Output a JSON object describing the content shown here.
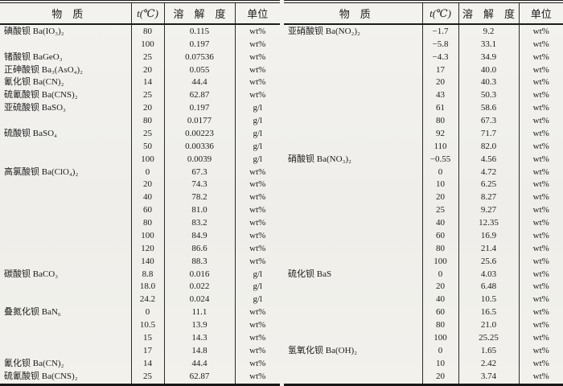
{
  "page": {
    "background_color": "#f2f1ed",
    "line_color": "#191919",
    "text_color": "#1c1c1c"
  },
  "tables": [
    {
      "name": "barium-solubility-left",
      "headers": {
        "substance": "物　质",
        "temperature": "t(℃)",
        "solubility": "溶　解　度",
        "unit": "单位"
      },
      "rows": [
        {
          "substance": "碘酸钡 Ba(IO₃)₂",
          "t": "80",
          "solubility": "0.115",
          "unit": "wt%"
        },
        {
          "substance": "",
          "t": "100",
          "solubility": "0.197",
          "unit": "wt%"
        },
        {
          "substance": "锗酸钡 BaGeO₃",
          "t": "25",
          "solubility": "0.07536",
          "unit": "wt%"
        },
        {
          "substance": "正砷酸钡 Ba₃(AsO₄)₂",
          "t": "20",
          "solubility": "0.055",
          "unit": "wt%"
        },
        {
          "substance": "氰化钡 Ba(CN)₂",
          "t": "14",
          "solubility": "44.4",
          "unit": "wt%"
        },
        {
          "substance": "硫氰酸钡 Ba(CNS)₂",
          "t": "25",
          "solubility": "62.87",
          "unit": "wt%"
        },
        {
          "substance": "亚硫酸钡 BaSO₃",
          "t": "20",
          "solubility": "0.197",
          "unit": "g/l"
        },
        {
          "substance": "",
          "t": "80",
          "solubility": "0.0177",
          "unit": "g/l"
        },
        {
          "substance": "硫酸钡 BaSO₄",
          "t": "25",
          "solubility": "0.00223",
          "unit": "g/l"
        },
        {
          "substance": "",
          "t": "50",
          "solubility": "0.00336",
          "unit": "g/l"
        },
        {
          "substance": "",
          "t": "100",
          "solubility": "0.0039",
          "unit": "g/l"
        },
        {
          "substance": "高氯酸钡 Ba(ClO₄)₂",
          "t": "0",
          "solubility": "67.3",
          "unit": "wt%"
        },
        {
          "substance": "",
          "t": "20",
          "solubility": "74.3",
          "unit": "wt%"
        },
        {
          "substance": "",
          "t": "40",
          "solubility": "78.2",
          "unit": "wt%"
        },
        {
          "substance": "",
          "t": "60",
          "solubility": "81.0",
          "unit": "wt%"
        },
        {
          "substance": "",
          "t": "80",
          "solubility": "83.2",
          "unit": "wt%"
        },
        {
          "substance": "",
          "t": "100",
          "solubility": "84.9",
          "unit": "wt%"
        },
        {
          "substance": "",
          "t": "120",
          "solubility": "86.6",
          "unit": "wt%"
        },
        {
          "substance": "",
          "t": "140",
          "solubility": "88.3",
          "unit": "wt%"
        },
        {
          "substance": "碳酸钡 BaCO₃",
          "t": "8.8",
          "solubility": "0.016",
          "unit": "g/l"
        },
        {
          "substance": "",
          "t": "18.0",
          "solubility": "0.022",
          "unit": "g/l"
        },
        {
          "substance": "",
          "t": "24.2",
          "solubility": "0.024",
          "unit": "g/l"
        },
        {
          "substance": "叠氮化钡 BaN₆",
          "t": "0",
          "solubility": "11.1",
          "unit": "wt%"
        },
        {
          "substance": "",
          "t": "10.5",
          "solubility": "13.9",
          "unit": "wt%"
        },
        {
          "substance": "",
          "t": "15",
          "solubility": "14.3",
          "unit": "wt%"
        },
        {
          "substance": "",
          "t": "17",
          "solubility": "14.8",
          "unit": "wt%"
        },
        {
          "substance": "氰化钡 Ba(CN)₂",
          "t": "14",
          "solubility": "44.4",
          "unit": "wt%"
        },
        {
          "substance": "硫氰酸钡 Ba(CNS)₂",
          "t": "25",
          "solubility": "62.87",
          "unit": "wt%"
        }
      ]
    },
    {
      "name": "barium-solubility-right",
      "headers": {
        "substance": "物　质",
        "temperature": "t(℃)",
        "solubility": "溶　解　度",
        "unit": "单位"
      },
      "rows": [
        {
          "substance": "亚硝酸钡 Ba(NO₂)₂",
          "t": "−1.7",
          "solubility": "9.2",
          "unit": "wt%"
        },
        {
          "substance": "",
          "t": "−5.8",
          "solubility": "33.1",
          "unit": "wt%"
        },
        {
          "substance": "",
          "t": "−4.3",
          "solubility": "34.9",
          "unit": "wt%"
        },
        {
          "substance": "",
          "t": "17",
          "solubility": "40.0",
          "unit": "wt%"
        },
        {
          "substance": "",
          "t": "20",
          "solubility": "40.3",
          "unit": "wt%"
        },
        {
          "substance": "",
          "t": "43",
          "solubility": "50.3",
          "unit": "wt%"
        },
        {
          "substance": "",
          "t": "61",
          "solubility": "58.6",
          "unit": "wt%"
        },
        {
          "substance": "",
          "t": "80",
          "solubility": "67.3",
          "unit": "wt%"
        },
        {
          "substance": "",
          "t": "92",
          "solubility": "71.7",
          "unit": "wt%"
        },
        {
          "substance": "",
          "t": "110",
          "solubility": "82.0",
          "unit": "wt%"
        },
        {
          "substance": "硝酸钡 Ba(NO₃)₂",
          "t": "−0.55",
          "solubility": "4.56",
          "unit": "wt%"
        },
        {
          "substance": "",
          "t": "0",
          "solubility": "4.72",
          "unit": "wt%"
        },
        {
          "substance": "",
          "t": "10",
          "solubility": "6.25",
          "unit": "wt%"
        },
        {
          "substance": "",
          "t": "20",
          "solubility": "8.27",
          "unit": "wt%"
        },
        {
          "substance": "",
          "t": "25",
          "solubility": "9.27",
          "unit": "wt%"
        },
        {
          "substance": "",
          "t": "40",
          "solubility": "12.35",
          "unit": "wt%"
        },
        {
          "substance": "",
          "t": "60",
          "solubility": "16.9",
          "unit": "wt%"
        },
        {
          "substance": "",
          "t": "80",
          "solubility": "21.4",
          "unit": "wt%"
        },
        {
          "substance": "",
          "t": "100",
          "solubility": "25.6",
          "unit": "wt%"
        },
        {
          "substance": "硫化钡 BaS",
          "t": "0",
          "solubility": "4.03",
          "unit": "wt%"
        },
        {
          "substance": "",
          "t": "20",
          "solubility": "6.48",
          "unit": "wt%"
        },
        {
          "substance": "",
          "t": "40",
          "solubility": "10.5",
          "unit": "wt%"
        },
        {
          "substance": "",
          "t": "60",
          "solubility": "16.5",
          "unit": "wt%"
        },
        {
          "substance": "",
          "t": "80",
          "solubility": "21.0",
          "unit": "wt%"
        },
        {
          "substance": "",
          "t": "100",
          "solubility": "25.25",
          "unit": "wt%"
        },
        {
          "substance": "氢氧化钡 Ba(OH)₂",
          "t": "0",
          "solubility": "1.65",
          "unit": "wt%"
        },
        {
          "substance": "",
          "t": "10",
          "solubility": "2.42",
          "unit": "wt%"
        },
        {
          "substance": "",
          "t": "20",
          "solubility": "3.74",
          "unit": "wt%"
        }
      ]
    }
  ]
}
